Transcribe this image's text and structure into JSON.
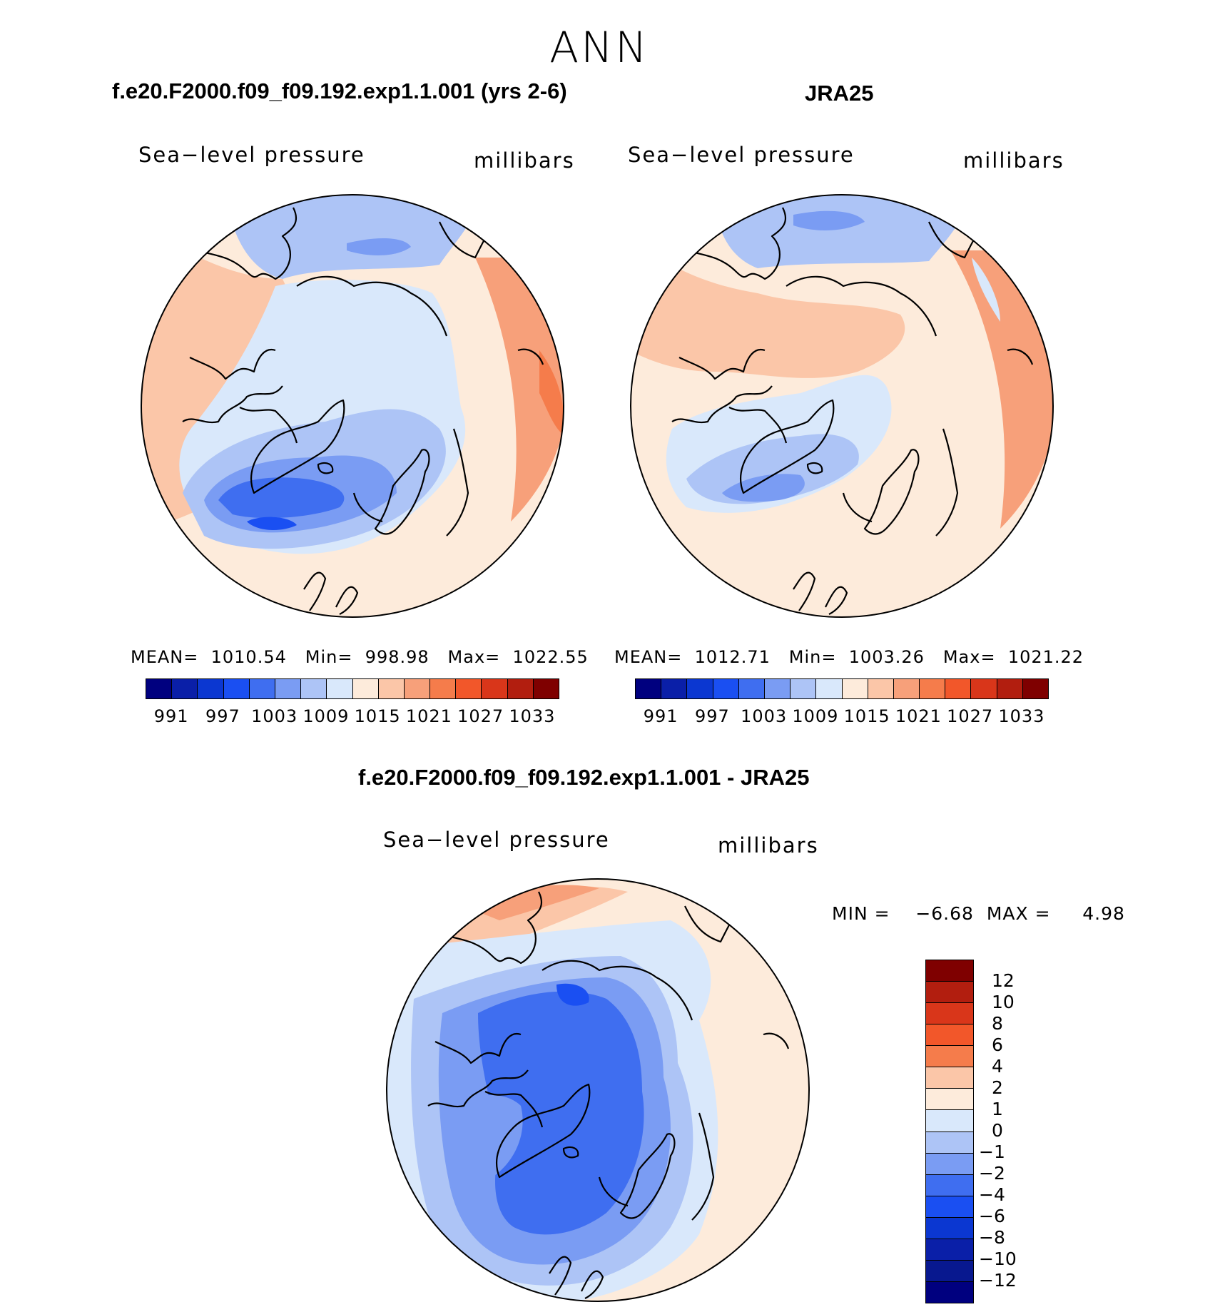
{
  "season": "ANN",
  "panels": [
    {
      "title": "f.e20.F2000.f09_f09.192.exp1.1.001 (yrs 2-6)",
      "variable": "Sea−level pressure",
      "units": "millibars",
      "stats": "MEAN=  1010.54   Min=  998.98   Max=  1022.55"
    },
    {
      "title": "JRA25",
      "variable": "Sea−level pressure",
      "units": "millibars",
      "stats": "MEAN=  1012.71   Min=  1003.26   Max=  1021.22"
    }
  ],
  "abs_colorbar": {
    "colors": [
      "#00007f",
      "#0a1fa8",
      "#0b37d1",
      "#1a4ff2",
      "#3f6ef0",
      "#7a9cf3",
      "#adc4f6",
      "#d9e8fb",
      "#fdebdb",
      "#fbc6a8",
      "#f7a07a",
      "#f57c4b",
      "#f2572a",
      "#d9361a",
      "#b21e0f",
      "#7f0000"
    ],
    "tick_labels": [
      "991",
      "997",
      "1003",
      "1009",
      "1015",
      "1021",
      "1027",
      "1033"
    ]
  },
  "diff_panel": {
    "title": "f.e20.F2000.f09_f09.192.exp1.1.001 - JRA25",
    "variable": "Sea−level pressure",
    "units": "millibars",
    "stats": "MIN =    −6.68  MAX =     4.98",
    "colorbar": {
      "colors_top_to_bottom": [
        "#7f0000",
        "#b21e0f",
        "#d9361a",
        "#f2572a",
        "#f57c4b",
        "#fbc6a8",
        "#fdebdb",
        "#d9e8fb",
        "#adc4f6",
        "#7a9cf3",
        "#3f6ef0",
        "#1a4ff2",
        "#0b37d1",
        "#0a1fa8",
        "#08188f",
        "#00007f"
      ],
      "tick_labels": [
        "12",
        "10",
        "8",
        "6",
        "4",
        "2",
        "1",
        "0",
        "−1",
        "−2",
        "−4",
        "−6",
        "−8",
        "−10",
        "−12"
      ]
    }
  }
}
